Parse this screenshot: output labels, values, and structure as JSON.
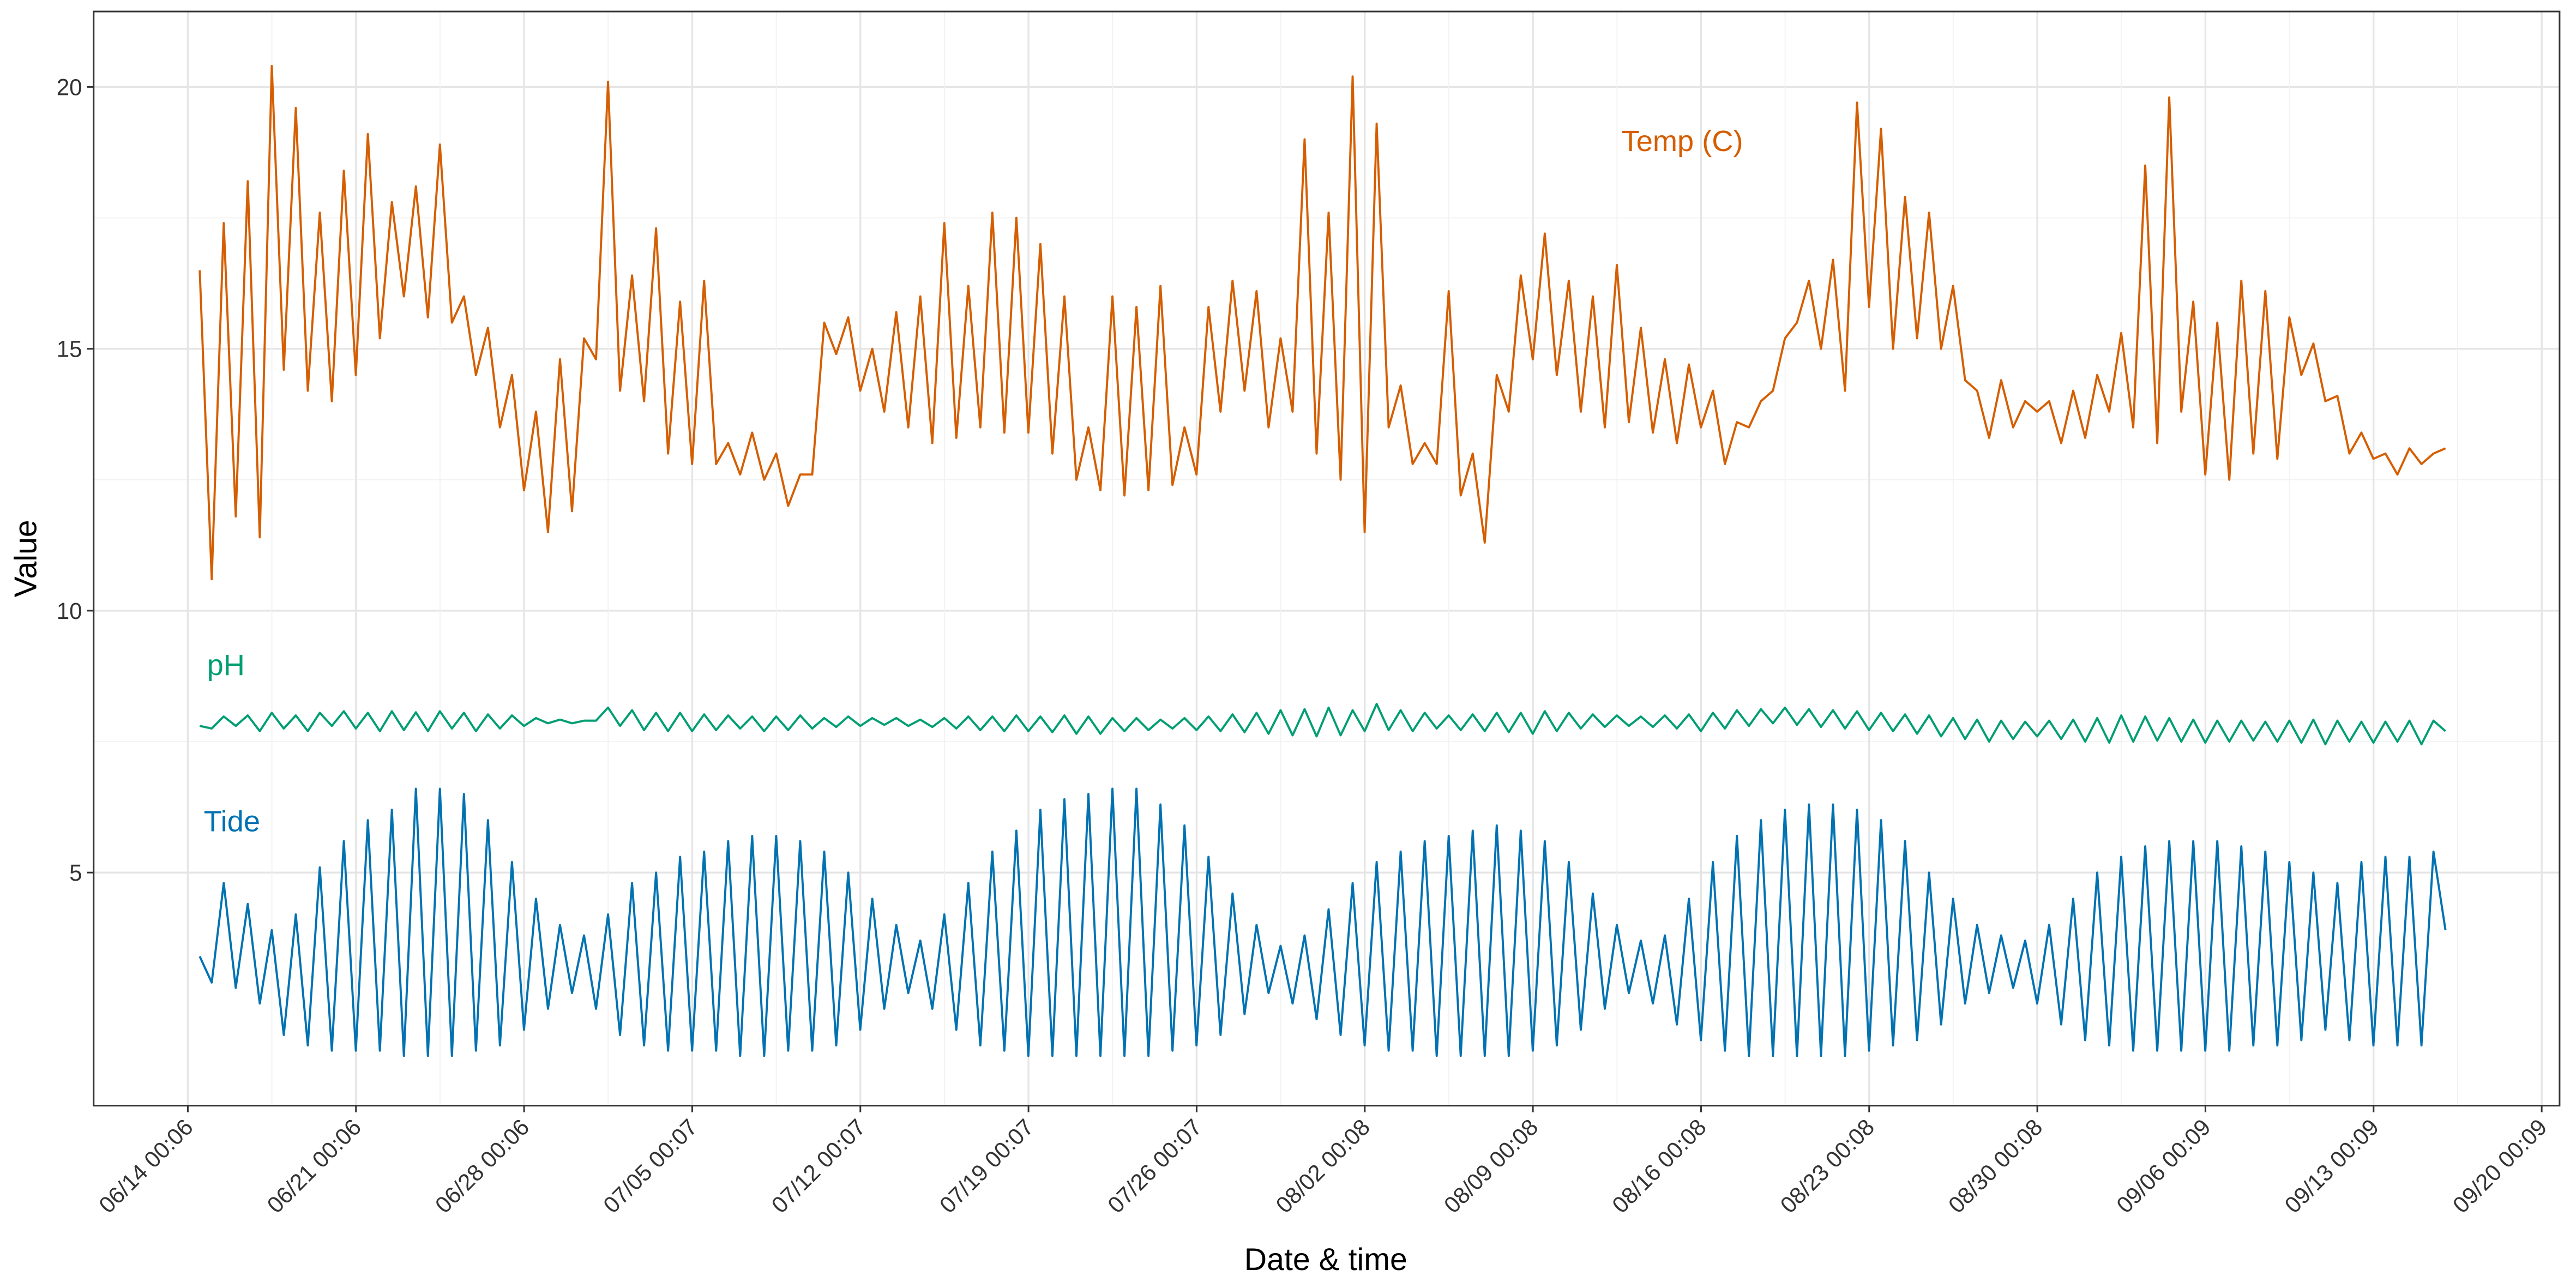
{
  "chart_data": {
    "type": "line",
    "x_label": "Date & time",
    "y_label": "Value",
    "xlim": [
      "06/10 02:00",
      "09/20 18:00"
    ],
    "xticks": [
      "06/14 00:06",
      "06/21 00:06",
      "06/28 00:06",
      "07/05 00:07",
      "07/12 00:07",
      "07/19 00:07",
      "07/26 00:07",
      "08/02 00:08",
      "08/09 00:08",
      "08/16 00:08",
      "08/23 00:08",
      "08/30 00:08",
      "09/06 00:09",
      "09/13 00:09",
      "09/20 00:09"
    ],
    "ylim": [
      0.55,
      21.44
    ],
    "yticks": [
      5,
      10,
      15,
      20
    ],
    "grid": true,
    "x": [
      "06/14 12:00",
      "06/15 00:00",
      "06/15 12:00",
      "06/16 00:00",
      "06/16 12:00",
      "06/17 00:00",
      "06/17 12:00",
      "06/18 00:00",
      "06/18 12:00",
      "06/19 00:00",
      "06/19 12:00",
      "06/20 00:00",
      "06/20 12:00",
      "06/21 00:00",
      "06/21 12:00",
      "06/22 00:00",
      "06/22 12:00",
      "06/23 00:00",
      "06/23 12:00",
      "06/24 00:00",
      "06/24 12:00",
      "06/25 00:00",
      "06/25 12:00",
      "06/26 00:00",
      "06/26 12:00",
      "06/27 00:00",
      "06/27 12:00",
      "06/28 00:00",
      "06/28 12:00",
      "06/29 00:00",
      "06/29 12:00",
      "06/30 00:00",
      "06/30 12:00",
      "07/01 00:00",
      "07/01 12:00",
      "07/02 00:00",
      "07/02 12:00",
      "07/03 00:00",
      "07/03 12:00",
      "07/04 00:00",
      "07/04 12:00",
      "07/05 00:00",
      "07/05 12:00",
      "07/06 00:00",
      "07/06 12:00",
      "07/07 00:00",
      "07/07 12:00",
      "07/08 00:00",
      "07/08 12:00",
      "07/09 00:00",
      "07/09 12:00",
      "07/10 00:00",
      "07/10 12:00",
      "07/11 00:00",
      "07/11 12:00",
      "07/12 00:00",
      "07/12 12:00",
      "07/13 00:00",
      "07/13 12:00",
      "07/14 00:00",
      "07/14 12:00",
      "07/15 00:00",
      "07/15 12:00",
      "07/16 00:00",
      "07/16 12:00",
      "07/17 00:00",
      "07/17 12:00",
      "07/18 00:00",
      "07/18 12:00",
      "07/19 00:00",
      "07/19 12:00",
      "07/20 00:00",
      "07/20 12:00",
      "07/21 00:00",
      "07/21 12:00",
      "07/22 00:00",
      "07/22 12:00",
      "07/23 00:00",
      "07/23 12:00",
      "07/24 00:00",
      "07/24 12:00",
      "07/25 00:00",
      "07/25 12:00",
      "07/26 00:00",
      "07/26 12:00",
      "07/27 00:00",
      "07/27 12:00",
      "07/28 00:00",
      "07/28 12:00",
      "07/29 00:00",
      "07/29 12:00",
      "07/30 00:00",
      "07/30 12:00",
      "07/31 00:00",
      "07/31 12:00",
      "08/01 00:00",
      "08/01 12:00",
      "08/02 00:00",
      "08/02 12:00",
      "08/03 00:00",
      "08/03 12:00",
      "08/04 00:00",
      "08/04 12:00",
      "08/05 00:00",
      "08/05 12:00",
      "08/06 00:00",
      "08/06 12:00",
      "08/07 00:00",
      "08/07 12:00",
      "08/08 00:00",
      "08/08 12:00",
      "08/09 00:00",
      "08/09 12:00",
      "08/10 00:00",
      "08/10 12:00",
      "08/11 00:00",
      "08/11 12:00",
      "08/12 00:00",
      "08/12 12:00",
      "08/13 00:00",
      "08/13 12:00",
      "08/14 00:00",
      "08/14 12:00",
      "08/15 00:00",
      "08/15 12:00",
      "08/16 00:00",
      "08/16 12:00",
      "08/17 00:00",
      "08/17 12:00",
      "08/18 00:00",
      "08/18 12:00",
      "08/19 00:00",
      "08/19 12:00",
      "08/20 00:00",
      "08/20 12:00",
      "08/21 00:00",
      "08/21 12:00",
      "08/22 00:00",
      "08/22 12:00",
      "08/23 00:00",
      "08/23 12:00",
      "08/24 00:00",
      "08/24 12:00",
      "08/25 00:00",
      "08/25 12:00",
      "08/26 00:00",
      "08/26 12:00",
      "08/27 00:00",
      "08/27 12:00",
      "08/28 00:00",
      "08/28 12:00",
      "08/29 00:00",
      "08/29 12:00",
      "08/30 00:00",
      "08/30 12:00",
      "08/31 00:00",
      "08/31 12:00",
      "09/01 00:00",
      "09/01 12:00",
      "09/02 00:00",
      "09/02 12:00",
      "09/03 00:00",
      "09/03 12:00",
      "09/04 00:00",
      "09/04 12:00",
      "09/05 00:00",
      "09/05 12:00",
      "09/06 00:00",
      "09/06 12:00",
      "09/07 00:00",
      "09/07 12:00",
      "09/08 00:00",
      "09/08 12:00",
      "09/09 00:00",
      "09/09 12:00",
      "09/10 00:00",
      "09/10 12:00",
      "09/11 00:00",
      "09/11 12:00",
      "09/12 00:00",
      "09/12 12:00",
      "09/13 00:00",
      "09/13 12:00",
      "09/14 00:00",
      "09/14 12:00",
      "09/15 00:00",
      "09/15 12:00",
      "09/16 00:00"
    ],
    "series": [
      {
        "name": "Temp (C)",
        "color": "#d55e00",
        "values": [
          16.5,
          10.6,
          17.4,
          11.8,
          18.2,
          11.4,
          20.4,
          14.6,
          19.6,
          14.2,
          17.6,
          14.0,
          18.4,
          14.5,
          19.1,
          15.2,
          17.8,
          16.0,
          18.1,
          15.6,
          18.9,
          15.5,
          16.0,
          14.5,
          15.4,
          13.5,
          14.5,
          12.3,
          13.8,
          11.5,
          14.8,
          11.9,
          15.2,
          14.8,
          20.1,
          14.2,
          16.4,
          14.0,
          17.3,
          13.0,
          15.9,
          12.8,
          16.3,
          12.8,
          13.2,
          12.6,
          13.4,
          12.5,
          13.0,
          12.0,
          12.6,
          12.6,
          15.5,
          14.9,
          15.6,
          14.2,
          15.0,
          13.8,
          15.7,
          13.5,
          16.0,
          13.2,
          17.4,
          13.3,
          16.2,
          13.5,
          17.6,
          13.4,
          17.5,
          13.4,
          17.0,
          13.0,
          16.0,
          12.5,
          13.5,
          12.3,
          16.0,
          12.2,
          15.8,
          12.3,
          16.2,
          12.4,
          13.5,
          12.6,
          15.8,
          13.8,
          16.3,
          14.2,
          16.1,
          13.5,
          15.2,
          13.8,
          19.0,
          13.0,
          17.6,
          12.5,
          20.2,
          11.5,
          19.3,
          13.5,
          14.3,
          12.8,
          13.2,
          12.8,
          16.1,
          12.2,
          13.0,
          11.3,
          14.5,
          13.8,
          16.4,
          14.8,
          17.2,
          14.5,
          16.3,
          13.8,
          16.0,
          13.5,
          16.6,
          13.6,
          15.4,
          13.4,
          14.8,
          13.2,
          14.7,
          13.5,
          14.2,
          12.8,
          13.6,
          13.5,
          14.0,
          14.2,
          15.2,
          15.5,
          16.3,
          15.0,
          16.7,
          14.2,
          19.7,
          15.8,
          19.2,
          15.0,
          17.9,
          15.2,
          17.6,
          15.0,
          16.2,
          14.4,
          14.2,
          13.3,
          14.4,
          13.5,
          14.0,
          13.8,
          14.0,
          13.2,
          14.2,
          13.3,
          14.5,
          13.8,
          15.3,
          13.5,
          18.5,
          13.2,
          19.8,
          13.8,
          15.9,
          12.6,
          15.5,
          12.5,
          16.3,
          13.0,
          16.1,
          12.9,
          15.6,
          14.5,
          15.1,
          14.0,
          14.1,
          13.0,
          13.4,
          12.9,
          13.0,
          12.6,
          13.1,
          12.8,
          13.0,
          13.1
        ]
      },
      {
        "name": "pH",
        "color": "#009e73",
        "values": [
          7.8,
          7.75,
          7.98,
          7.8,
          8.0,
          7.7,
          8.05,
          7.75,
          8.0,
          7.7,
          8.05,
          7.8,
          8.08,
          7.75,
          8.05,
          7.7,
          8.08,
          7.72,
          8.06,
          7.7,
          8.08,
          7.75,
          8.05,
          7.7,
          8.02,
          7.75,
          8.0,
          7.8,
          7.95,
          7.85,
          7.92,
          7.85,
          7.9,
          7.9,
          8.15,
          7.8,
          8.1,
          7.72,
          8.05,
          7.7,
          8.05,
          7.7,
          8.02,
          7.72,
          8.0,
          7.75,
          7.98,
          7.7,
          7.98,
          7.72,
          8.0,
          7.75,
          7.95,
          7.78,
          7.98,
          7.8,
          7.95,
          7.82,
          7.95,
          7.8,
          7.92,
          7.78,
          7.95,
          7.75,
          7.98,
          7.72,
          7.98,
          7.7,
          8.0,
          7.7,
          7.98,
          7.68,
          8.0,
          7.65,
          7.98,
          7.65,
          7.95,
          7.7,
          7.95,
          7.72,
          7.92,
          7.75,
          7.95,
          7.72,
          7.98,
          7.7,
          8.02,
          7.68,
          8.05,
          7.65,
          8.1,
          7.62,
          8.12,
          7.6,
          8.15,
          7.62,
          8.1,
          7.7,
          8.22,
          7.72,
          8.1,
          7.7,
          8.05,
          7.75,
          8.0,
          7.72,
          8.02,
          7.7,
          8.05,
          7.68,
          8.05,
          7.65,
          8.08,
          7.7,
          8.05,
          7.75,
          8.02,
          7.78,
          8.0,
          7.8,
          7.98,
          7.78,
          8.0,
          7.75,
          8.02,
          7.7,
          8.05,
          7.75,
          8.1,
          7.8,
          8.12,
          7.85,
          8.15,
          7.82,
          8.12,
          7.78,
          8.1,
          7.75,
          8.08,
          7.72,
          8.05,
          7.7,
          8.02,
          7.65,
          8.0,
          7.6,
          7.95,
          7.55,
          7.92,
          7.5,
          7.9,
          7.55,
          7.88,
          7.6,
          7.9,
          7.55,
          7.92,
          7.5,
          7.95,
          7.48,
          8.0,
          7.5,
          7.98,
          7.52,
          7.95,
          7.5,
          7.92,
          7.48,
          7.9,
          7.5,
          7.9,
          7.52,
          7.88,
          7.5,
          7.9,
          7.48,
          7.92,
          7.45,
          7.9,
          7.5,
          7.88,
          7.48,
          7.88,
          7.5,
          7.9,
          7.45,
          7.9,
          7.7
        ]
      },
      {
        "name": "Tide",
        "color": "#0072b2",
        "values": [
          3.4,
          2.9,
          4.8,
          2.8,
          4.4,
          2.5,
          3.9,
          1.9,
          4.2,
          1.7,
          5.1,
          1.6,
          5.6,
          1.6,
          6.0,
          1.6,
          6.2,
          1.5,
          6.6,
          1.5,
          6.6,
          1.5,
          6.5,
          1.6,
          6.0,
          1.7,
          5.2,
          2.0,
          4.5,
          2.4,
          4.0,
          2.7,
          3.8,
          2.4,
          4.2,
          1.9,
          4.8,
          1.7,
          5.0,
          1.6,
          5.3,
          1.6,
          5.4,
          1.6,
          5.6,
          1.5,
          5.7,
          1.5,
          5.7,
          1.6,
          5.6,
          1.6,
          5.4,
          1.7,
          5.0,
          2.0,
          4.5,
          2.4,
          4.0,
          2.7,
          3.7,
          2.4,
          4.2,
          2.0,
          4.8,
          1.7,
          5.4,
          1.6,
          5.8,
          1.5,
          6.2,
          1.5,
          6.4,
          1.5,
          6.5,
          1.5,
          6.6,
          1.5,
          6.6,
          1.5,
          6.3,
          1.6,
          5.9,
          1.7,
          5.3,
          1.9,
          4.6,
          2.3,
          4.0,
          2.7,
          3.6,
          2.5,
          3.8,
          2.2,
          4.3,
          1.9,
          4.8,
          1.7,
          5.2,
          1.6,
          5.4,
          1.6,
          5.6,
          1.5,
          5.7,
          1.5,
          5.8,
          1.5,
          5.9,
          1.5,
          5.8,
          1.6,
          5.6,
          1.7,
          5.2,
          2.0,
          4.6,
          2.4,
          4.0,
          2.7,
          3.7,
          2.5,
          3.8,
          2.1,
          4.5,
          1.8,
          5.2,
          1.6,
          5.7,
          1.5,
          6.0,
          1.5,
          6.2,
          1.5,
          6.3,
          1.5,
          6.3,
          1.5,
          6.2,
          1.6,
          6.0,
          1.7,
          5.6,
          1.8,
          5.0,
          2.1,
          4.5,
          2.5,
          4.0,
          2.7,
          3.8,
          2.8,
          3.7,
          2.5,
          4.0,
          2.1,
          4.5,
          1.8,
          5.0,
          1.7,
          5.3,
          1.6,
          5.5,
          1.6,
          5.6,
          1.6,
          5.6,
          1.6,
          5.6,
          1.6,
          5.5,
          1.7,
          5.4,
          1.7,
          5.2,
          1.8,
          5.0,
          2.0,
          4.8,
          1.8,
          5.2,
          1.7,
          5.3,
          1.7,
          5.3,
          1.7,
          5.4,
          3.9
        ]
      }
    ]
  }
}
